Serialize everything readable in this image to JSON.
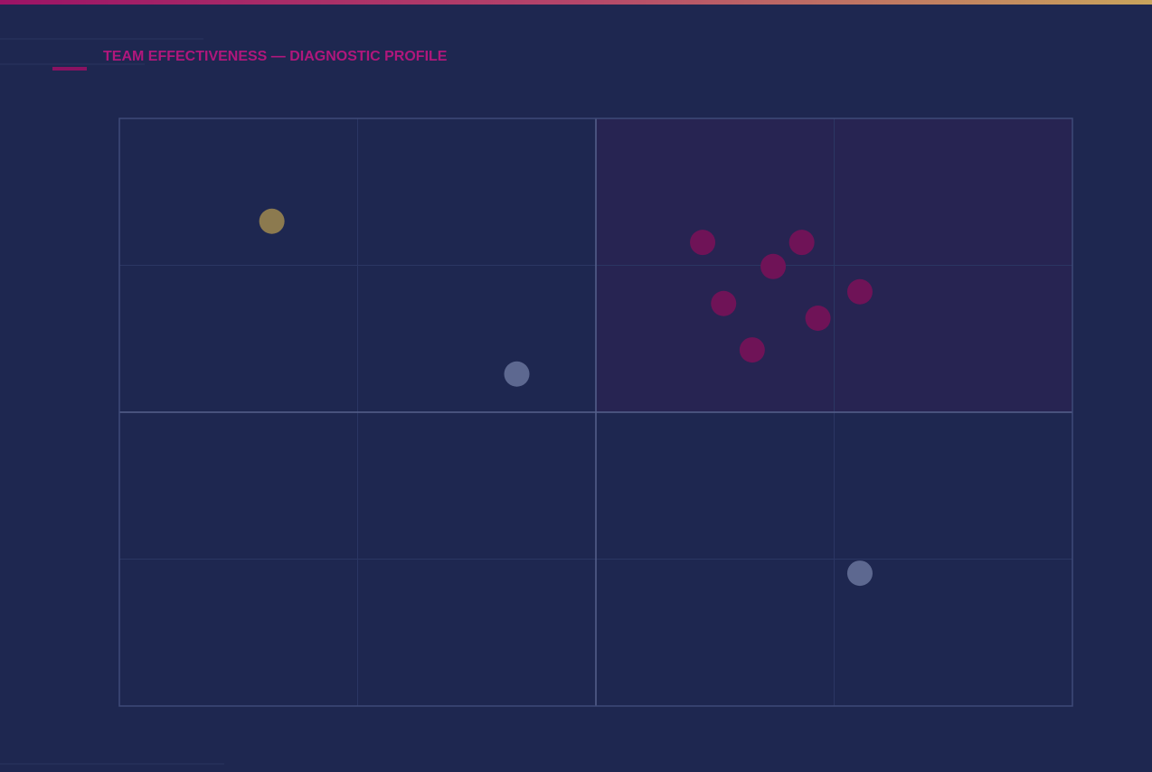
{
  "chart_data": {
    "type": "scatter",
    "title": "TEAM EFFECTIVENESS — DIAGNOSTIC PROFILE",
    "xlim": [
      0,
      100
    ],
    "ylim": [
      0,
      100
    ],
    "series": [
      {
        "color": "#8c7a4f",
        "x": [
          16.0
        ],
        "y": [
          82.5
        ]
      },
      {
        "color": "#5d6890",
        "x": [
          41.7,
          77.7
        ],
        "y": [
          56.5,
          22.6
        ]
      },
      {
        "color": "#6f1357",
        "x": [
          61.2,
          71.6,
          68.6,
          77.7,
          63.4,
          73.3,
          66.4
        ],
        "y": [
          78.9,
          78.9,
          74.8,
          70.5,
          68.5,
          66.0,
          60.6
        ]
      }
    ]
  }
}
